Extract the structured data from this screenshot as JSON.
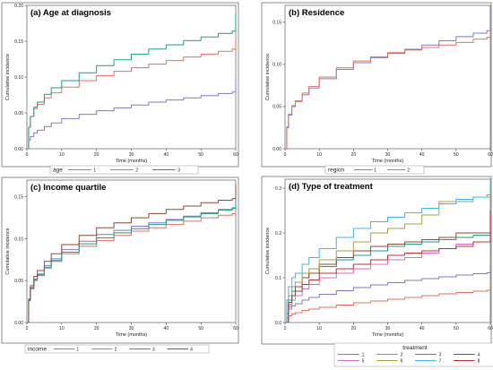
{
  "chart_data": [
    {
      "type": "line",
      "title": "(a) Age at diagnosis",
      "xlabel": "Time (months)",
      "ylabel": "Cumulative incidence",
      "xlim": [
        0,
        60
      ],
      "ylim": [
        0,
        0.2
      ],
      "xticks": [
        0,
        10,
        20,
        30,
        40,
        50,
        60
      ],
      "yticks": [
        0,
        0.05,
        0.1,
        0.15,
        0.2
      ],
      "ytick_labels": [
        "0.00",
        "0.05",
        "0.10",
        "0.15",
        "0.20"
      ],
      "legend_title": "age",
      "legend_position": "bottom",
      "grid": false,
      "series": [
        {
          "name": "1",
          "color": "#7b7bc8",
          "x": [
            0,
            0.5,
            1,
            2,
            3,
            5,
            7,
            10,
            15,
            20,
            25,
            30,
            35,
            40,
            45,
            50,
            55,
            59,
            60,
            60
          ],
          "y": [
            0,
            0.012,
            0.017,
            0.022,
            0.026,
            0.031,
            0.036,
            0.042,
            0.048,
            0.053,
            0.057,
            0.061,
            0.065,
            0.068,
            0.071,
            0.074,
            0.077,
            0.079,
            0.08,
            0.1
          ]
        },
        {
          "name": "2",
          "color": "#e07060",
          "x": [
            0,
            0.5,
            1,
            2,
            3,
            5,
            7,
            10,
            15,
            20,
            25,
            30,
            35,
            40,
            45,
            50,
            55,
            59,
            60,
            60
          ],
          "y": [
            0,
            0.03,
            0.045,
            0.056,
            0.062,
            0.071,
            0.078,
            0.086,
            0.095,
            0.102,
            0.108,
            0.113,
            0.118,
            0.123,
            0.128,
            0.132,
            0.136,
            0.139,
            0.14,
            0.15
          ]
        },
        {
          "name": "3",
          "color": "#1e9b8a",
          "x": [
            0,
            0.5,
            1,
            2,
            3,
            5,
            7,
            10,
            15,
            20,
            25,
            30,
            35,
            40,
            45,
            50,
            55,
            59,
            60,
            60
          ],
          "y": [
            0,
            0.03,
            0.045,
            0.058,
            0.065,
            0.076,
            0.085,
            0.095,
            0.106,
            0.116,
            0.124,
            0.132,
            0.139,
            0.145,
            0.151,
            0.156,
            0.161,
            0.164,
            0.166,
            0.19
          ]
        }
      ]
    },
    {
      "type": "line",
      "title": "(b) Residence",
      "xlabel": "Time (months)",
      "ylabel": "Cumulative incidence",
      "xlim": [
        0,
        60
      ],
      "ylim": [
        0,
        0.17
      ],
      "xticks": [
        0,
        10,
        20,
        30,
        40,
        50,
        60
      ],
      "yticks": [
        0,
        0.05,
        0.1,
        0.15
      ],
      "ytick_labels": [
        "0.00",
        "0.05",
        "0.10",
        "0.15"
      ],
      "legend_title": "region",
      "legend_position": "bottom",
      "grid": false,
      "series": [
        {
          "name": "1",
          "color": "#7b7bc8",
          "x": [
            0,
            0.5,
            1,
            2,
            3,
            5,
            7,
            10,
            15,
            20,
            25,
            30,
            35,
            40,
            45,
            50,
            55,
            59,
            60,
            60
          ],
          "y": [
            0,
            0.025,
            0.04,
            0.05,
            0.056,
            0.064,
            0.072,
            0.083,
            0.094,
            0.102,
            0.108,
            0.113,
            0.118,
            0.123,
            0.128,
            0.133,
            0.137,
            0.14,
            0.141,
            0.165
          ]
        },
        {
          "name": "2",
          "color": "#e07060",
          "x": [
            0,
            0.5,
            1,
            2,
            3,
            5,
            7,
            10,
            15,
            20,
            25,
            30,
            35,
            40,
            45,
            50,
            55,
            59,
            60,
            60
          ],
          "y": [
            0,
            0.026,
            0.041,
            0.051,
            0.057,
            0.066,
            0.074,
            0.085,
            0.096,
            0.104,
            0.109,
            0.114,
            0.117,
            0.12,
            0.123,
            0.126,
            0.13,
            0.132,
            0.133,
            0.14
          ]
        }
      ]
    },
    {
      "type": "line",
      "title": "(c) Income quartile",
      "xlabel": "Time (months)",
      "ylabel": "Cumulative incidence",
      "xlim": [
        0,
        60
      ],
      "ylim": [
        0,
        0.17
      ],
      "xticks": [
        0,
        10,
        20,
        30,
        40,
        50,
        60
      ],
      "yticks": [
        0,
        0.05,
        0.1,
        0.15
      ],
      "ytick_labels": [
        "0.00",
        "0.05",
        "0.10",
        "0.15"
      ],
      "legend_title": "income",
      "legend_position": "bottom",
      "grid": false,
      "series": [
        {
          "name": "1",
          "color": "#7b7bc8",
          "x": [
            0,
            0.5,
            1,
            2,
            3,
            5,
            7,
            10,
            15,
            20,
            25,
            30,
            35,
            40,
            45,
            50,
            55,
            59,
            60,
            60
          ],
          "y": [
            0,
            0.027,
            0.042,
            0.052,
            0.058,
            0.068,
            0.076,
            0.087,
            0.097,
            0.105,
            0.11,
            0.115,
            0.119,
            0.123,
            0.127,
            0.131,
            0.135,
            0.137,
            0.138,
            0.15
          ]
        },
        {
          "name": "2",
          "color": "#e07060",
          "x": [
            0,
            0.5,
            1,
            2,
            3,
            5,
            7,
            10,
            15,
            20,
            25,
            30,
            35,
            40,
            45,
            50,
            55,
            59,
            60,
            60
          ],
          "y": [
            0,
            0.026,
            0.04,
            0.05,
            0.056,
            0.065,
            0.073,
            0.082,
            0.091,
            0.098,
            0.104,
            0.109,
            0.113,
            0.117,
            0.121,
            0.125,
            0.128,
            0.13,
            0.131,
            0.14
          ]
        },
        {
          "name": "3",
          "color": "#1e9b8a",
          "x": [
            0,
            0.5,
            1,
            2,
            3,
            5,
            7,
            10,
            15,
            20,
            25,
            30,
            35,
            40,
            45,
            50,
            55,
            59,
            60,
            60
          ],
          "y": [
            0,
            0.026,
            0.041,
            0.051,
            0.057,
            0.066,
            0.074,
            0.084,
            0.094,
            0.101,
            0.107,
            0.112,
            0.117,
            0.122,
            0.126,
            0.13,
            0.134,
            0.136,
            0.137,
            0.16
          ]
        },
        {
          "name": "4",
          "color": "#8b4a3a",
          "x": [
            0,
            0.5,
            1,
            2,
            3,
            5,
            7,
            10,
            15,
            20,
            25,
            30,
            35,
            40,
            45,
            50,
            55,
            59,
            60,
            60
          ],
          "y": [
            0,
            0.028,
            0.044,
            0.055,
            0.062,
            0.073,
            0.082,
            0.093,
            0.104,
            0.113,
            0.119,
            0.125,
            0.13,
            0.135,
            0.139,
            0.143,
            0.146,
            0.148,
            0.149,
            0.165
          ]
        }
      ]
    },
    {
      "type": "line",
      "title": "(d) Type of treatment",
      "xlabel": "Time (months)",
      "ylabel": "Cumulative incidence",
      "xlim": [
        0,
        60
      ],
      "ylim": [
        0,
        0.32
      ],
      "xticks": [
        0,
        10,
        20,
        30,
        40,
        50,
        60
      ],
      "yticks": [
        0,
        0.1,
        0.2,
        0.3
      ],
      "ytick_labels": [
        "0.0",
        "0.1",
        "0.2",
        "0.3"
      ],
      "legend_title": "treatment",
      "legend_position": "bottom",
      "grid": false,
      "series": [
        {
          "name": "1",
          "color": "#7b7bc8",
          "x": [
            0,
            0.5,
            1,
            2,
            3,
            5,
            7,
            10,
            15,
            20,
            25,
            30,
            35,
            40,
            45,
            50,
            55,
            59,
            60,
            60
          ],
          "y": [
            0,
            0.02,
            0.03,
            0.037,
            0.042,
            0.05,
            0.056,
            0.063,
            0.071,
            0.078,
            0.084,
            0.089,
            0.094,
            0.098,
            0.102,
            0.106,
            0.109,
            0.111,
            0.112,
            0.12
          ]
        },
        {
          "name": "2",
          "color": "#e07060",
          "x": [
            0,
            0.5,
            1,
            2,
            3,
            5,
            7,
            10,
            15,
            20,
            25,
            30,
            35,
            40,
            45,
            50,
            55,
            59,
            60,
            60
          ],
          "y": [
            0,
            0.01,
            0.015,
            0.019,
            0.022,
            0.027,
            0.03,
            0.034,
            0.039,
            0.044,
            0.048,
            0.052,
            0.056,
            0.06,
            0.064,
            0.067,
            0.07,
            0.072,
            0.073,
            0.095
          ]
        },
        {
          "name": "3",
          "color": "#1e9b8a",
          "x": [
            0,
            1,
            2,
            3,
            5,
            7,
            10,
            15,
            20,
            25,
            30,
            35,
            40,
            45,
            50,
            55,
            60,
            60
          ],
          "y": [
            0,
            0.05,
            0.07,
            0.08,
            0.1,
            0.11,
            0.125,
            0.14,
            0.15,
            0.16,
            0.17,
            0.175,
            0.18,
            0.185,
            0.19,
            0.195,
            0.2,
            0.21
          ]
        },
        {
          "name": "4",
          "color": "#8b4a3a",
          "x": [
            0,
            1,
            2,
            3,
            5,
            7,
            10,
            15,
            20,
            25,
            30,
            35,
            40,
            45,
            50,
            55,
            60,
            60
          ],
          "y": [
            0,
            0.04,
            0.06,
            0.08,
            0.1,
            0.11,
            0.13,
            0.145,
            0.16,
            0.17,
            0.175,
            0.18,
            0.185,
            0.19,
            0.2,
            0.2,
            0.21,
            0.25
          ]
        },
        {
          "name": "5",
          "color": "#d070c8",
          "x": [
            0,
            1,
            2,
            3,
            5,
            7,
            10,
            15,
            20,
            25,
            30,
            35,
            40,
            45,
            50,
            55,
            60,
            60
          ],
          "y": [
            0,
            0.035,
            0.05,
            0.06,
            0.075,
            0.085,
            0.1,
            0.11,
            0.12,
            0.13,
            0.14,
            0.145,
            0.155,
            0.165,
            0.175,
            0.18,
            0.19,
            0.2
          ]
        },
        {
          "name": "6",
          "color": "#a8a040",
          "x": [
            0,
            1,
            2,
            3,
            5,
            7,
            10,
            15,
            20,
            25,
            30,
            35,
            40,
            45,
            50,
            55,
            60,
            60
          ],
          "y": [
            0,
            0.06,
            0.08,
            0.09,
            0.11,
            0.12,
            0.14,
            0.16,
            0.18,
            0.2,
            0.21,
            0.22,
            0.24,
            0.27,
            0.27,
            0.28,
            0.3,
            0.31
          ]
        },
        {
          "name": "7",
          "color": "#3ab8e8",
          "x": [
            0,
            0.5,
            1,
            2,
            3,
            5,
            7,
            10,
            15,
            20,
            25,
            30,
            35,
            40,
            45,
            50,
            55,
            59,
            60,
            60
          ],
          "y": [
            0,
            0.05,
            0.08,
            0.1,
            0.11,
            0.13,
            0.145,
            0.165,
            0.19,
            0.21,
            0.225,
            0.235,
            0.245,
            0.255,
            0.265,
            0.275,
            0.28,
            0.285,
            0.29,
            0.33
          ]
        },
        {
          "name": "8",
          "color": "#c03030",
          "x": [
            0,
            1,
            2,
            3,
            5,
            7,
            10,
            15,
            20,
            25,
            30,
            35,
            40,
            45,
            50,
            55,
            60,
            60
          ],
          "y": [
            0,
            0.045,
            0.06,
            0.07,
            0.085,
            0.095,
            0.11,
            0.12,
            0.13,
            0.14,
            0.15,
            0.155,
            0.16,
            0.165,
            0.17,
            0.18,
            0.2,
            0.24
          ]
        }
      ]
    }
  ]
}
